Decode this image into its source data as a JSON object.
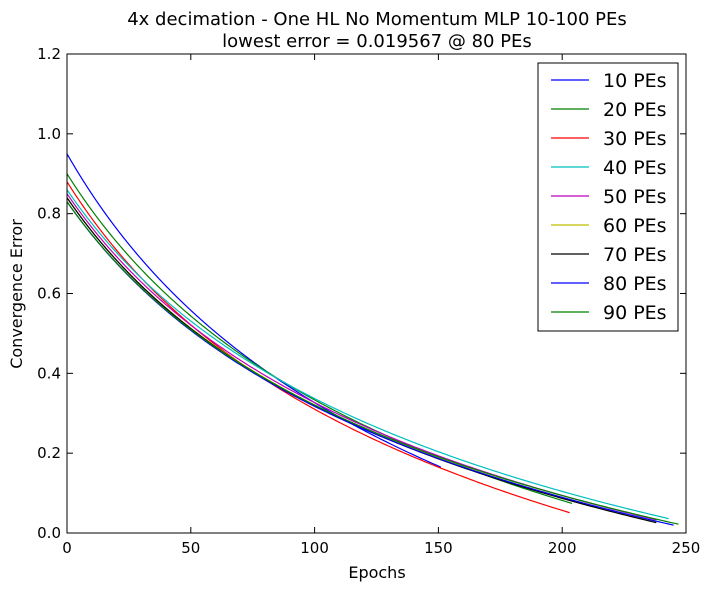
{
  "chart_data": {
    "type": "line",
    "title": "4x decimation - One HL No Momentum MLP 10-100 PEs",
    "subtitle": "lowest error = 0.019567 @ 80 PEs",
    "xlabel": "Epochs",
    "ylabel": "Convergence Error",
    "xlim": [
      0,
      250
    ],
    "ylim": [
      0,
      1.2
    ],
    "xticks": [
      "0",
      "50",
      "100",
      "150",
      "200",
      "250"
    ],
    "yticks": [
      "0.0",
      "0.2",
      "0.4",
      "0.6",
      "0.8",
      "1.0",
      "1.2"
    ],
    "grid": false,
    "legend_position": "top-right",
    "series": [
      {
        "name": "10 PEs",
        "color": "#0000ff",
        "start": 0.95,
        "final": 0.165,
        "epochs": 151
      },
      {
        "name": "20 PEs",
        "color": "#008000",
        "start": 0.9,
        "final": 0.074,
        "epochs": 204
      },
      {
        "name": "30 PEs",
        "color": "#ff0000",
        "start": 0.88,
        "final": 0.051,
        "epochs": 203
      },
      {
        "name": "40 PEs",
        "color": "#00bfbf",
        "start": 0.86,
        "final": 0.036,
        "epochs": 243
      },
      {
        "name": "50 PEs",
        "color": "#bf00bf",
        "start": 0.85,
        "final": 0.033,
        "epochs": 238
      },
      {
        "name": "60 PEs",
        "color": "#bfbf00",
        "start": 0.84,
        "final": 0.029,
        "epochs": 238
      },
      {
        "name": "70 PEs",
        "color": "#000000",
        "start": 0.84,
        "final": 0.026,
        "epochs": 238
      },
      {
        "name": "80 PEs",
        "color": "#0000ff",
        "start": 0.83,
        "final": 0.0196,
        "epochs": 245
      },
      {
        "name": "90 PEs",
        "color": "#008000",
        "start": 0.83,
        "final": 0.022,
        "epochs": 247
      }
    ]
  }
}
